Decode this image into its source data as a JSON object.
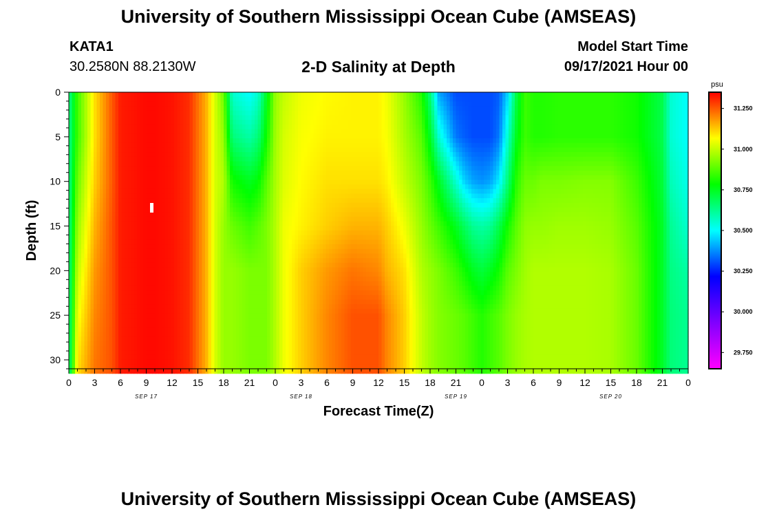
{
  "header": {
    "title": "University of Southern Mississippi Ocean Cube (AMSEAS)",
    "station": "KATA1",
    "location": "30.2580N  88.2130W",
    "plot_title": "2-D Salinity at Depth",
    "model_start_label": "Model Start Time",
    "model_start_value": "09/17/2021 Hour 00"
  },
  "footer": {
    "title": "University of Southern Mississippi Ocean Cube (AMSEAS)"
  },
  "chart_data": {
    "type": "heatmap",
    "title": "2-D Salinity at Depth",
    "xlabel": "Forecast Time(Z)",
    "ylabel": "Depth (ft)",
    "x_unit": "forecast hour",
    "xlim": [
      0,
      72
    ],
    "ylim": [
      0,
      31
    ],
    "x_ticks": [
      0,
      3,
      6,
      9,
      12,
      15,
      18,
      21,
      24,
      27,
      30,
      33,
      36,
      39,
      42,
      45,
      48,
      51,
      54,
      57,
      60,
      63,
      66,
      69,
      72
    ],
    "x_tick_labels": [
      "0",
      "3",
      "6",
      "9",
      "12",
      "15",
      "18",
      "21",
      "0",
      "3",
      "6",
      "9",
      "12",
      "15",
      "18",
      "21",
      "0",
      "3",
      "6",
      "9",
      "12",
      "15",
      "18",
      "21",
      "0"
    ],
    "date_labels": [
      {
        "hour": 9,
        "label": "SEP 17"
      },
      {
        "hour": 27,
        "label": "SEP 18"
      },
      {
        "hour": 45,
        "label": "SEP 19"
      },
      {
        "hour": 63,
        "label": "SEP 20"
      }
    ],
    "y_ticks": [
      0,
      5,
      10,
      15,
      20,
      25,
      30
    ],
    "colorbar": {
      "unit": "psu",
      "min": 29.65,
      "max": 31.35,
      "ticks": [
        31.25,
        31.0,
        30.75,
        30.5,
        30.25,
        30.0,
        29.75
      ],
      "tick_labels": [
        "31.250",
        "31.000",
        "30.750",
        "30.500",
        "30.250",
        "30.000",
        "29.750"
      ],
      "palette": [
        "#ff00ff",
        "#8000ff",
        "#0000ff",
        "#00ffff",
        "#00ff00",
        "#ffff00",
        "#ff0000"
      ]
    },
    "depths": [
      0,
      5,
      10,
      15,
      20,
      25,
      31
    ],
    "hours": [
      0,
      1,
      3,
      5,
      6,
      9,
      10,
      12,
      14,
      16,
      17,
      18,
      19,
      21,
      22,
      23,
      24,
      25,
      27,
      30,
      33,
      36,
      37,
      39,
      41,
      42,
      43,
      45,
      46,
      47,
      48,
      49,
      50,
      51,
      52,
      53,
      54,
      55,
      57,
      60,
      63,
      66,
      69,
      70,
      72
    ],
    "salinity": [
      [
        30.62,
        30.62,
        30.62,
        30.62,
        30.62,
        30.62,
        30.62
      ],
      [
        30.85,
        30.85,
        30.9,
        30.95,
        31.0,
        31.05,
        31.1
      ],
      [
        31.1,
        31.1,
        31.12,
        31.15,
        31.18,
        31.2,
        31.22
      ],
      [
        31.25,
        31.25,
        31.25,
        31.26,
        31.26,
        31.26,
        31.26
      ],
      [
        31.32,
        31.32,
        31.32,
        31.32,
        31.32,
        31.32,
        31.32
      ],
      [
        31.34,
        31.34,
        31.34,
        31.34,
        31.34,
        31.34,
        31.34
      ],
      [
        31.34,
        31.34,
        31.34,
        31.34,
        31.34,
        31.34,
        31.34
      ],
      [
        31.33,
        31.33,
        31.33,
        31.33,
        31.33,
        31.33,
        31.33
      ],
      [
        31.3,
        31.3,
        31.3,
        31.3,
        31.3,
        31.3,
        31.3
      ],
      [
        31.15,
        31.15,
        31.15,
        31.15,
        31.15,
        31.15,
        31.15
      ],
      [
        31.02,
        31.02,
        31.02,
        31.02,
        31.02,
        31.02,
        31.02
      ],
      [
        30.9,
        30.95,
        30.98,
        30.95,
        30.95,
        30.95,
        30.95
      ],
      [
        30.55,
        30.65,
        30.8,
        30.9,
        30.95,
        30.95,
        30.95
      ],
      [
        30.5,
        30.6,
        30.75,
        30.85,
        30.92,
        30.92,
        30.92
      ],
      [
        30.55,
        30.65,
        30.78,
        30.88,
        30.92,
        30.92,
        30.92
      ],
      [
        30.75,
        30.8,
        30.88,
        30.92,
        30.92,
        30.92,
        30.92
      ],
      [
        30.95,
        30.96,
        30.97,
        30.98,
        30.98,
        30.98,
        30.98
      ],
      [
        31.0,
        31.02,
        31.03,
        31.05,
        31.05,
        31.05,
        31.05
      ],
      [
        31.05,
        31.06,
        31.07,
        31.08,
        31.12,
        31.12,
        31.12
      ],
      [
        31.07,
        31.08,
        31.1,
        31.12,
        31.18,
        31.2,
        31.2
      ],
      [
        31.08,
        31.08,
        31.1,
        31.15,
        31.22,
        31.26,
        31.26
      ],
      [
        31.08,
        31.08,
        31.1,
        31.15,
        31.2,
        31.26,
        31.26
      ],
      [
        31.05,
        31.06,
        31.08,
        31.12,
        31.15,
        31.2,
        31.2
      ],
      [
        30.95,
        30.97,
        31.0,
        31.05,
        31.1,
        31.12,
        31.12
      ],
      [
        30.82,
        30.88,
        30.92,
        30.95,
        30.98,
        31.0,
        31.0
      ],
      [
        30.65,
        30.75,
        30.85,
        30.9,
        30.95,
        30.96,
        30.96
      ],
      [
        30.4,
        30.55,
        30.75,
        30.85,
        30.92,
        30.93,
        30.93
      ],
      [
        30.3,
        30.35,
        30.55,
        30.75,
        30.85,
        30.9,
        30.9
      ],
      [
        30.3,
        30.32,
        30.45,
        30.68,
        30.8,
        30.88,
        30.88
      ],
      [
        30.3,
        30.3,
        30.4,
        30.62,
        30.75,
        30.85,
        30.85
      ],
      [
        30.3,
        30.3,
        30.38,
        30.6,
        30.72,
        30.82,
        30.82
      ],
      [
        30.3,
        30.3,
        30.4,
        30.62,
        30.75,
        30.85,
        30.85
      ],
      [
        30.32,
        30.35,
        30.48,
        30.7,
        30.8,
        30.88,
        30.88
      ],
      [
        30.45,
        30.55,
        30.65,
        30.8,
        30.88,
        30.92,
        30.92
      ],
      [
        30.7,
        30.75,
        30.82,
        30.88,
        30.92,
        30.95,
        30.95
      ],
      [
        30.85,
        30.85,
        30.9,
        30.94,
        30.96,
        30.97,
        30.97
      ],
      [
        30.82,
        30.82,
        30.9,
        30.95,
        30.98,
        30.98,
        30.98
      ],
      [
        30.82,
        30.82,
        30.92,
        30.95,
        30.98,
        30.98,
        30.98
      ],
      [
        30.83,
        30.83,
        30.92,
        30.96,
        30.98,
        30.98,
        30.98
      ],
      [
        30.83,
        30.83,
        30.93,
        30.96,
        30.98,
        30.98,
        30.98
      ],
      [
        30.83,
        30.83,
        30.93,
        30.95,
        30.97,
        30.97,
        30.97
      ],
      [
        30.8,
        30.8,
        30.85,
        30.88,
        30.9,
        30.9,
        30.9
      ],
      [
        30.7,
        30.7,
        30.72,
        30.74,
        30.74,
        30.74,
        30.74
      ],
      [
        30.55,
        30.55,
        30.58,
        30.62,
        30.64,
        30.65,
        30.65
      ],
      [
        30.5,
        30.5,
        30.52,
        30.55,
        30.6,
        30.62,
        30.62
      ]
    ]
  }
}
